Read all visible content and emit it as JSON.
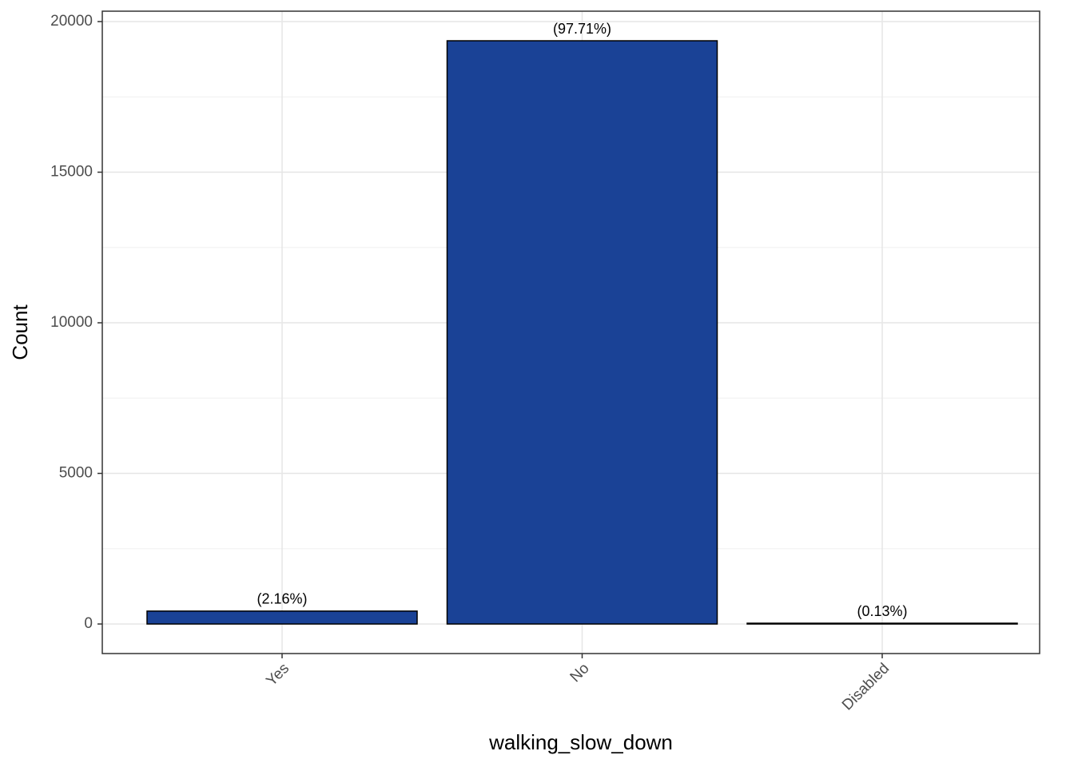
{
  "chart_data": {
    "type": "bar",
    "x_label": "walking_slow_down",
    "y_label": "Count",
    "categories": [
      "Yes",
      "No",
      "Disabled"
    ],
    "values": [
      428,
      19363,
      26
    ],
    "bar_labels": [
      "(2.16%)",
      "(97.71%)",
      "(0.13%)"
    ],
    "color": "#1a4296",
    "ylim": [
      -981,
      20345
    ],
    "yticks": [
      0,
      5000,
      10000,
      15000,
      20000
    ],
    "minor_yticks": [
      2500,
      7500,
      12500,
      17500
    ],
    "grid": true
  }
}
